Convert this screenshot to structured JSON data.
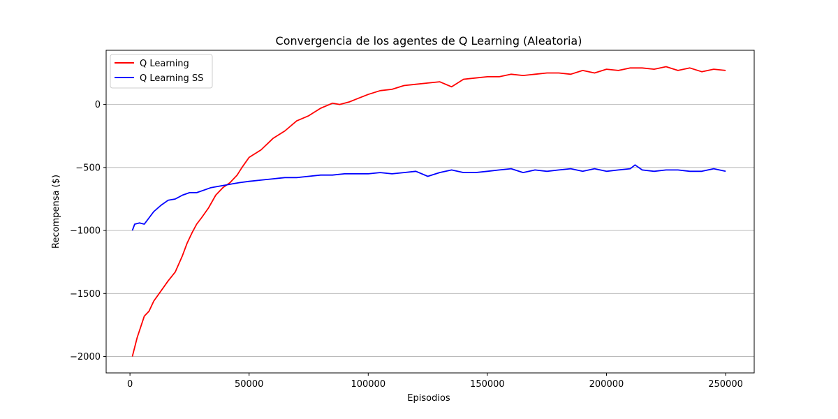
{
  "chart_data": {
    "type": "line",
    "title": "Convergencia de los agentes de Q Learning (Aleatoria)",
    "xlabel": "Episodios",
    "ylabel": "Recompensa ($)",
    "xlim": [
      -10000,
      262000
    ],
    "ylim": [
      -2130,
      430
    ],
    "xticks": [
      0,
      50000,
      100000,
      150000,
      200000,
      250000
    ],
    "xtick_labels": [
      "0",
      "50000",
      "100000",
      "150000",
      "200000",
      "250000"
    ],
    "yticks": [
      -2000,
      -1500,
      -1000,
      -500,
      0
    ],
    "ytick_labels": [
      "−2000",
      "−1500",
      "−1000",
      "−500",
      "0"
    ],
    "grid": "y-major",
    "legend": "upper-left",
    "series": [
      {
        "name": "Q Learning",
        "color": "#ff0000",
        "x": [
          1000,
          3000,
          6000,
          8000,
          10000,
          13000,
          16000,
          19000,
          22000,
          24000,
          26000,
          28000,
          30000,
          33000,
          36000,
          39000,
          42000,
          45000,
          47000,
          50000,
          55000,
          60000,
          65000,
          70000,
          75000,
          80000,
          85000,
          88000,
          92000,
          96000,
          100000,
          105000,
          110000,
          115000,
          120000,
          125000,
          130000,
          135000,
          140000,
          145000,
          150000,
          155000,
          160000,
          165000,
          170000,
          175000,
          180000,
          185000,
          190000,
          195000,
          200000,
          205000,
          210000,
          215000,
          220000,
          225000,
          230000,
          235000,
          240000,
          245000,
          250000
        ],
        "values": [
          -2000,
          -1850,
          -1680,
          -1640,
          -1560,
          -1480,
          -1400,
          -1330,
          -1200,
          -1100,
          -1020,
          -950,
          -900,
          -820,
          -720,
          -660,
          -620,
          -560,
          -500,
          -420,
          -360,
          -270,
          -210,
          -130,
          -90,
          -30,
          10,
          0,
          20,
          50,
          80,
          110,
          120,
          150,
          160,
          170,
          180,
          140,
          200,
          210,
          220,
          220,
          240,
          230,
          240,
          250,
          250,
          240,
          270,
          250,
          280,
          270,
          290,
          290,
          280,
          300,
          270,
          290,
          260,
          280,
          270
        ]
      },
      {
        "name": "Q Learning SS",
        "color": "#0000ff",
        "x": [
          1000,
          2000,
          4000,
          6000,
          8000,
          10000,
          13000,
          16000,
          19000,
          22000,
          25000,
          28000,
          31000,
          34000,
          37000,
          40000,
          43000,
          46000,
          50000,
          55000,
          60000,
          65000,
          70000,
          75000,
          80000,
          85000,
          90000,
          95000,
          100000,
          105000,
          110000,
          115000,
          120000,
          125000,
          130000,
          135000,
          140000,
          145000,
          150000,
          155000,
          160000,
          165000,
          170000,
          175000,
          180000,
          185000,
          190000,
          195000,
          200000,
          205000,
          210000,
          212000,
          215000,
          220000,
          225000,
          230000,
          235000,
          240000,
          245000,
          250000
        ],
        "values": [
          -1000,
          -950,
          -940,
          -950,
          -900,
          -850,
          -800,
          -760,
          -750,
          -720,
          -700,
          -700,
          -680,
          -660,
          -650,
          -640,
          -630,
          -620,
          -610,
          -600,
          -590,
          -580,
          -580,
          -570,
          -560,
          -560,
          -550,
          -550,
          -550,
          -540,
          -550,
          -540,
          -530,
          -570,
          -540,
          -520,
          -540,
          -540,
          -530,
          -520,
          -510,
          -540,
          -520,
          -530,
          -520,
          -510,
          -530,
          -510,
          -530,
          -520,
          -510,
          -480,
          -520,
          -530,
          -520,
          -520,
          -530,
          -530,
          -510,
          -530
        ]
      }
    ]
  }
}
